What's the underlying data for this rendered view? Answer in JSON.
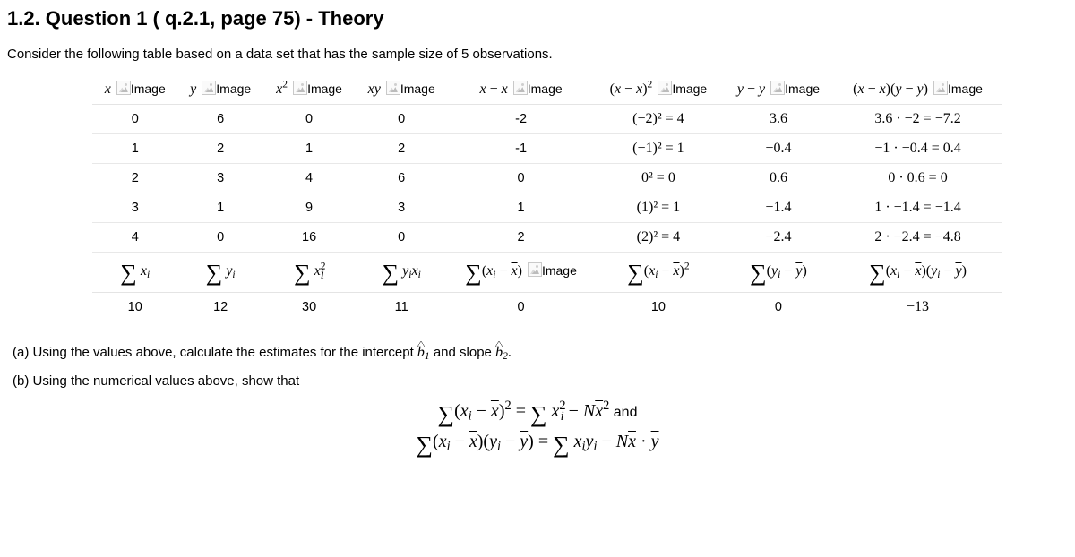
{
  "heading": "1.2. Question 1 ( q.2.1, page 75) - Theory",
  "intro": "Consider the following table based on a data set that has the sample size of 5 observations.",
  "imgLabel": "Image",
  "headers": {
    "h1_tex": "x",
    "h2_tex": "y",
    "h3_tex": "x²",
    "h4_tex": "xy",
    "h5_tex": "x − x̄",
    "h6_tex": "(x − x̄)²",
    "h7_tex": "y − ȳ",
    "h8_tex": "(x − x̄)(y − ȳ)"
  },
  "rows": [
    {
      "x": "0",
      "y": "6",
      "xsq": "0",
      "xy": "0",
      "xmx": "-2",
      "xmx2": "(−2)² = 4",
      "ymy": "3.6",
      "prod": "3.6 · −2 = −7.2"
    },
    {
      "x": "1",
      "y": "2",
      "xsq": "1",
      "xy": "2",
      "xmx": "-1",
      "xmx2": "(−1)² = 1",
      "ymy": "−0.4",
      "prod": "−1 · −0.4 = 0.4"
    },
    {
      "x": "2",
      "y": "3",
      "xsq": "4",
      "xy": "6",
      "xmx": "0",
      "xmx2": "0² = 0",
      "ymy": "0.6",
      "prod": "0 · 0.6 = 0"
    },
    {
      "x": "3",
      "y": "1",
      "xsq": "9",
      "xy": "3",
      "xmx": "1",
      "xmx2": "(1)² = 1",
      "ymy": "−1.4",
      "prod": "1 · −1.4 = −1.4"
    },
    {
      "x": "4",
      "y": "0",
      "xsq": "16",
      "xy": "0",
      "xmx": "2",
      "xmx2": "(2)² = 4",
      "ymy": "−2.4",
      "prod": "2 · −2.4 = −4.8"
    }
  ],
  "sums": {
    "sx": "10",
    "sy": "12",
    "sxsq": "30",
    "sxy": "11",
    "sxmx": "0",
    "sxmx2": "10",
    "symy": "0",
    "sprod": "−13"
  },
  "partA_prefix": "(a) Using the values above, calculate the estimates for the intercept ",
  "partA_mid": " and slope ",
  "b1": "b",
  "b1sub": "1",
  "b2": "b",
  "b2sub": "2",
  "partB": "(b) Using the numerical values above, show that",
  "andWord": " and"
}
